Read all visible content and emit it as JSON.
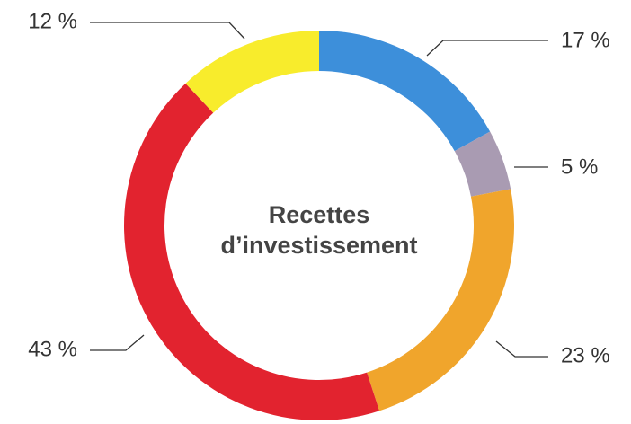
{
  "chart_data": {
    "type": "donut",
    "title": "Recettes d’investissement",
    "values": [
      17,
      5,
      23,
      43,
      12
    ],
    "value_labels": [
      "17 %",
      "5 %",
      "23 %",
      "43 %",
      "12 %"
    ],
    "colors": [
      "#3d8fda",
      "#a99bb2",
      "#f0a52c",
      "#e2232f",
      "#f8ec2c"
    ]
  }
}
